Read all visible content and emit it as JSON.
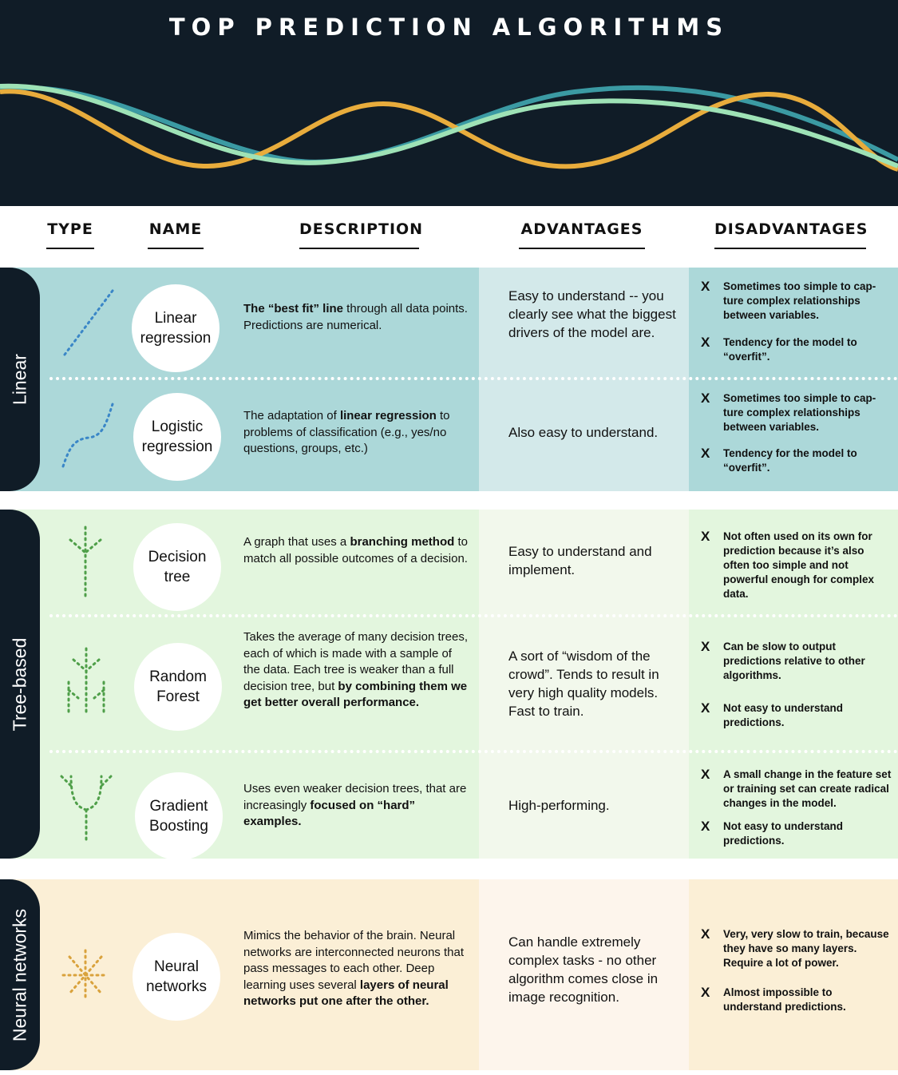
{
  "title": "TOP PREDICTION ALGORITHMS",
  "colors": {
    "dark": "#101c27",
    "linear_bg": "#acd8d9",
    "linear_adv_bg": "#d3e9ea",
    "tree_bg": "#e3f6de",
    "tree_adv_bg": "#f2f8ec",
    "neural_bg": "#fbefd6",
    "neural_adv_bg": "#fdf5ec",
    "wave_orange": "#e8ac3c",
    "wave_teal": "#3b9aa3",
    "wave_mint": "#9ee2b6",
    "icon_blue": "#3a86c7",
    "icon_green": "#4f9f49",
    "icon_orange": "#d9a23c"
  },
  "columns": {
    "type": "TYPE",
    "name": "NAME",
    "description": "DESCRIPTION",
    "advantages": "ADVANTAGES",
    "disadvantages": "DISADVANTAGES"
  },
  "x_mark": "X",
  "groups": {
    "linear": {
      "label": "Linear",
      "rows": [
        {
          "icon": "dotted-line-icon",
          "name": [
            "Linear",
            "regression"
          ],
          "description": [
            {
              "t": "The “best fit” line",
              "b": true
            },
            {
              "t": " through all data points. Predictions are numerical.",
              "b": false
            }
          ],
          "advantage": "Easy to understand -- you clearly see what the biggest drivers of the model are.",
          "disadvantages": [
            "Sometimes too simple to cap- ture complex relationships between variables.",
            "Tendency for the model to “overfit”."
          ]
        },
        {
          "icon": "dotted-curve-icon",
          "name": [
            "Logistic",
            "regression"
          ],
          "description": [
            {
              "t": "The adaptation of ",
              "b": false
            },
            {
              "t": "linear regression",
              "b": true
            },
            {
              "t": " to problems of classification (e.g., yes/no questions, groups, etc.)",
              "b": false
            }
          ],
          "advantage": "Also easy to understand.",
          "disadvantages": [
            "Sometimes too simple to cap- ture complex relationships between variables.",
            "Tendency for the model to “overfit”."
          ]
        }
      ]
    },
    "tree": {
      "label": "Tree-based",
      "rows": [
        {
          "icon": "single-tree-icon",
          "name": [
            "Decision",
            "tree"
          ],
          "description": [
            {
              "t": "A graph that uses a ",
              "b": false
            },
            {
              "t": "branching method",
              "b": true
            },
            {
              "t": " to match all possible outcomes of a decision.",
              "b": false
            }
          ],
          "advantage": "Easy to understand and implement.",
          "disadvantages": [
            "Not often used on its own for prediction because it’s also often too simple and not powerful enough for complex data."
          ]
        },
        {
          "icon": "forest-icon",
          "name": [
            "Random",
            "Forest"
          ],
          "description": [
            {
              "t": "Takes the average of many decision trees, each of which is made with a sample of the data. Each tree is weaker than a full decision tree, but ",
              "b": false
            },
            {
              "t": "by combining them we get better overall performance.",
              "b": true
            }
          ],
          "advantage": "A sort of “wisdom of the crowd”. Tends to result in very high quality models. Fast to train.",
          "disadvantages": [
            "Can be slow to output predictions relative to other algorithms.",
            "Not easy to understand predictions."
          ]
        },
        {
          "icon": "boosting-tree-icon",
          "name": [
            "Gradient",
            "Boosting"
          ],
          "description": [
            {
              "t": "Uses even weaker decision trees, that are increasingly ",
              "b": false
            },
            {
              "t": "focused on “hard” examples.",
              "b": true
            }
          ],
          "advantage": "High-performing.",
          "disadvantages": [
            "A small change in the feature set or training set can create radical changes in the model.",
            "Not easy to understand predictions."
          ]
        }
      ]
    },
    "neural": {
      "label": "Neural networks",
      "rows": [
        {
          "icon": "neural-burst-icon",
          "name": [
            "Neural",
            "networks"
          ],
          "description": [
            {
              "t": "Mimics the behavior of the brain. Neural networks are interconnected neurons that pass messages to each other. Deep learning uses several ",
              "b": false
            },
            {
              "t": "layers of neural networks put one after the other.",
              "b": true
            }
          ],
          "advantage": "Can handle extremely complex tasks - no other algorithm comes close in image recognition.",
          "disadvantages": [
            "Very, very slow to train, because they have so many layers. Require a lot of power.",
            "Almost impossible to understand predictions."
          ]
        }
      ]
    }
  }
}
